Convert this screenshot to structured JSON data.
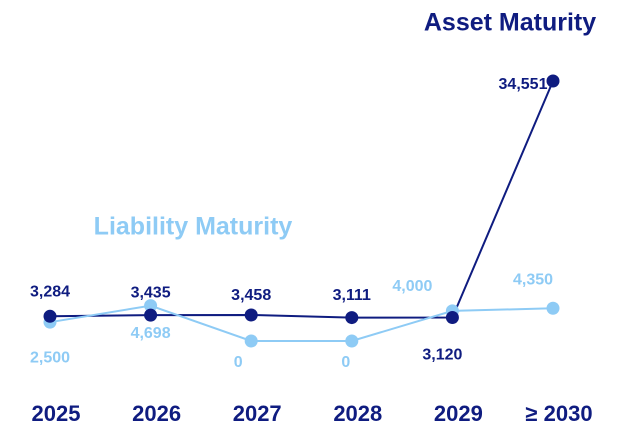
{
  "chart_data": {
    "type": "line",
    "categories": [
      "2025",
      "2026",
      "2027",
      "2028",
      "2029",
      "≥ 2030"
    ],
    "series": [
      {
        "name": "Asset Maturity",
        "color": "#0f1c80",
        "values": [
          3284,
          3435,
          3458,
          3111,
          3120,
          34551
        ],
        "value_labels": [
          "3,284",
          "3,435",
          "3,458",
          "3,111",
          "3,120",
          "34,551"
        ]
      },
      {
        "name": "Liability Maturity",
        "color": "#8ecbf5",
        "values": [
          2500,
          4698,
          0,
          0,
          4000,
          4350
        ],
        "value_labels": [
          "2,500",
          "4,698",
          "0",
          "0",
          "4,000",
          "4,350"
        ]
      }
    ]
  }
}
